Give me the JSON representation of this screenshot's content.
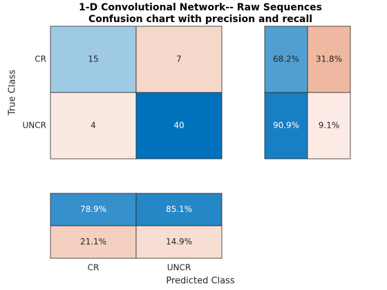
{
  "chart_data": {
    "type": "confusion",
    "title": "1-D Convolutional Network-- Raw Sequences",
    "subtitle": "Confusion chart with precision and recall",
    "xlabel": "Predicted Class",
    "ylabel": "True Class",
    "categories": [
      "CR",
      "UNCR"
    ],
    "values": [
      [
        15,
        7
      ],
      [
        4,
        40
      ]
    ],
    "row_summary": {
      "values": [
        [
          68.2,
          31.8
        ],
        [
          90.9,
          9.1
        ]
      ],
      "value_labels": [
        [
          "68.2%",
          "31.8%"
        ],
        [
          "90.9%",
          "9.1%"
        ]
      ]
    },
    "column_summary": {
      "values": [
        [
          78.9,
          85.1
        ],
        [
          21.1,
          14.9
        ]
      ],
      "value_labels": [
        [
          "78.9%",
          "85.1%"
        ],
        [
          "21.1%",
          "14.9%"
        ]
      ]
    },
    "colors": {
      "correct": "#0072BD",
      "incorrect": "#D95319"
    }
  }
}
